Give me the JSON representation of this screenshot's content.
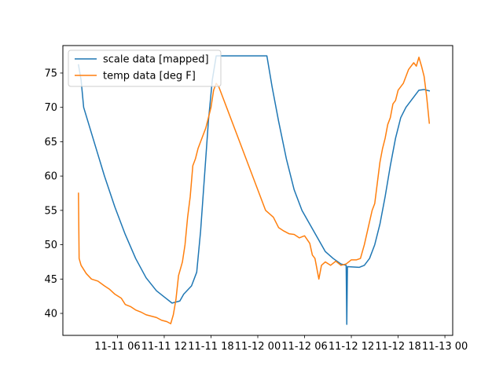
{
  "chart_data": {
    "type": "line",
    "title": "",
    "xlabel": "",
    "ylabel": "",
    "x_axis": "datetime",
    "xlim": [
      "2020-11-10 23:00",
      "2020-11-13 01:00"
    ],
    "ylim": [
      36.8,
      79.0
    ],
    "x_ticks": [
      {
        "x": "2020-11-11 06:00",
        "label": "11-11 06"
      },
      {
        "x": "2020-11-11 12:00",
        "label": "11-11 12"
      },
      {
        "x": "2020-11-11 18:00",
        "label": "11-11 18"
      },
      {
        "x": "2020-11-12 00:00",
        "label": "11-12 00"
      },
      {
        "x": "2020-11-12 06:00",
        "label": "11-12 06"
      },
      {
        "x": "2020-11-12 12:00",
        "label": "11-12 12"
      },
      {
        "x": "2020-11-12 18:00",
        "label": "11-12 18"
      },
      {
        "x": "2020-11-13 00:00",
        "label": "11-13 00"
      }
    ],
    "y_ticks": [
      40,
      45,
      50,
      55,
      60,
      65,
      70,
      75
    ],
    "grid": false,
    "legend": {
      "position": "top-left"
    },
    "series": [
      {
        "name": "scale data [mapped]",
        "color": "#1f77b4",
        "points": [
          [
            "2020-11-11 01:00",
            76.2
          ],
          [
            "2020-11-11 01:20",
            74.0
          ],
          [
            "2020-11-11 01:40",
            70.0
          ],
          [
            "2020-11-11 03:00",
            65.0
          ],
          [
            "2020-11-11 04:20",
            60.0
          ],
          [
            "2020-11-11 05:40",
            55.5
          ],
          [
            "2020-11-11 07:00",
            51.5
          ],
          [
            "2020-11-11 08:20",
            48.0
          ],
          [
            "2020-11-11 09:40",
            45.2
          ],
          [
            "2020-11-11 11:00",
            43.3
          ],
          [
            "2020-11-11 12:00",
            42.4
          ],
          [
            "2020-11-11 13:00",
            41.5
          ],
          [
            "2020-11-11 14:00",
            41.8
          ],
          [
            "2020-11-11 14:30",
            42.8
          ],
          [
            "2020-11-11 15:30",
            44.0
          ],
          [
            "2020-11-11 16:10",
            46.0
          ],
          [
            "2020-11-11 16:40",
            52.0
          ],
          [
            "2020-11-11 17:10",
            60.0
          ],
          [
            "2020-11-11 17:40",
            68.0
          ],
          [
            "2020-11-11 18:10",
            74.0
          ],
          [
            "2020-11-11 18:40",
            77.5
          ],
          [
            "2020-11-12 01:10",
            77.5
          ],
          [
            "2020-11-12 01:50",
            73.0
          ],
          [
            "2020-11-12 02:40",
            68.0
          ],
          [
            "2020-11-12 03:40",
            62.5
          ],
          [
            "2020-11-12 04:40",
            58.0
          ],
          [
            "2020-11-12 05:40",
            55.0
          ],
          [
            "2020-11-12 06:40",
            53.0
          ],
          [
            "2020-11-12 07:40",
            51.0
          ],
          [
            "2020-11-12 08:40",
            49.0
          ],
          [
            "2020-11-12 09:40",
            48.0
          ],
          [
            "2020-11-12 10:40",
            47.2
          ],
          [
            "2020-11-12 11:20",
            47.0
          ],
          [
            "2020-11-12 11:25",
            38.4
          ],
          [
            "2020-11-12 11:30",
            46.8
          ],
          [
            "2020-11-12 13:00",
            46.7
          ],
          [
            "2020-11-12 13:40",
            47.0
          ],
          [
            "2020-11-12 14:20",
            48.0
          ],
          [
            "2020-11-12 15:00",
            50.0
          ],
          [
            "2020-11-12 15:40",
            53.0
          ],
          [
            "2020-11-12 16:20",
            57.0
          ],
          [
            "2020-11-12 17:00",
            61.5
          ],
          [
            "2020-11-12 17:40",
            65.5
          ],
          [
            "2020-11-12 18:20",
            68.5
          ],
          [
            "2020-11-12 19:00",
            70.0
          ],
          [
            "2020-11-12 19:40",
            71.0
          ],
          [
            "2020-11-12 20:40",
            72.5
          ],
          [
            "2020-11-12 21:20",
            72.6
          ],
          [
            "2020-11-12 21:40",
            72.5
          ],
          [
            "2020-11-12 22:00",
            72.4
          ]
        ]
      },
      {
        "name": "temp data [deg F]",
        "color": "#ff7f0e",
        "points": [
          [
            "2020-11-11 01:00",
            57.5
          ],
          [
            "2020-11-11 01:05",
            48.0
          ],
          [
            "2020-11-11 01:20",
            47.0
          ],
          [
            "2020-11-11 02:00",
            45.8
          ],
          [
            "2020-11-11 02:40",
            45.0
          ],
          [
            "2020-11-11 03:30",
            44.7
          ],
          [
            "2020-11-11 04:20",
            44.0
          ],
          [
            "2020-11-11 05:00",
            43.5
          ],
          [
            "2020-11-11 05:40",
            42.8
          ],
          [
            "2020-11-11 06:30",
            42.2
          ],
          [
            "2020-11-11 07:00",
            41.3
          ],
          [
            "2020-11-11 07:40",
            41.0
          ],
          [
            "2020-11-11 08:20",
            40.5
          ],
          [
            "2020-11-11 09:00",
            40.2
          ],
          [
            "2020-11-11 09:40",
            39.8
          ],
          [
            "2020-11-11 10:20",
            39.6
          ],
          [
            "2020-11-11 11:00",
            39.4
          ],
          [
            "2020-11-11 11:40",
            39.0
          ],
          [
            "2020-11-11 12:20",
            38.8
          ],
          [
            "2020-11-11 12:50",
            38.5
          ],
          [
            "2020-11-11 13:10",
            39.8
          ],
          [
            "2020-11-11 13:30",
            42.0
          ],
          [
            "2020-11-11 13:50",
            45.5
          ],
          [
            "2020-11-11 14:20",
            47.5
          ],
          [
            "2020-11-11 14:40",
            50.0
          ],
          [
            "2020-11-11 15:00",
            54.0
          ],
          [
            "2020-11-11 15:20",
            57.0
          ],
          [
            "2020-11-11 15:40",
            61.5
          ],
          [
            "2020-11-11 16:00",
            62.5
          ],
          [
            "2020-11-11 16:20",
            64.0
          ],
          [
            "2020-11-11 16:40",
            65.0
          ],
          [
            "2020-11-11 17:00",
            66.0
          ],
          [
            "2020-11-11 17:20",
            67.0
          ],
          [
            "2020-11-11 17:40",
            68.5
          ],
          [
            "2020-11-11 18:00",
            70.0
          ],
          [
            "2020-11-11 18:20",
            72.5
          ],
          [
            "2020-11-11 18:40",
            73.5
          ],
          [
            "2020-11-11 19:00",
            73.0
          ],
          [
            "2020-11-11 20:00",
            70.0
          ],
          [
            "2020-11-11 21:20",
            66.0
          ],
          [
            "2020-11-11 22:40",
            62.0
          ],
          [
            "2020-11-12 00:00",
            58.0
          ],
          [
            "2020-11-12 01:00",
            55.0
          ],
          [
            "2020-11-12 02:00",
            54.0
          ],
          [
            "2020-11-12 02:40",
            52.5
          ],
          [
            "2020-11-12 03:20",
            52.0
          ],
          [
            "2020-11-12 04:00",
            51.6
          ],
          [
            "2020-11-12 04:40",
            51.5
          ],
          [
            "2020-11-12 05:20",
            51.0
          ],
          [
            "2020-11-12 06:00",
            51.3
          ],
          [
            "2020-11-12 06:40",
            50.2
          ],
          [
            "2020-11-12 07:00",
            48.5
          ],
          [
            "2020-11-12 07:20",
            48.0
          ],
          [
            "2020-11-12 07:40",
            46.0
          ],
          [
            "2020-11-12 07:50",
            45.0
          ],
          [
            "2020-11-12 08:10",
            47.0
          ],
          [
            "2020-11-12 08:40",
            47.5
          ],
          [
            "2020-11-12 09:20",
            47.0
          ],
          [
            "2020-11-12 10:00",
            47.6
          ],
          [
            "2020-11-12 10:40",
            47.0
          ],
          [
            "2020-11-12 11:20",
            47.2
          ],
          [
            "2020-11-12 12:00",
            47.8
          ],
          [
            "2020-11-12 12:40",
            47.8
          ],
          [
            "2020-11-12 13:10",
            48.0
          ],
          [
            "2020-11-12 13:40",
            50.0
          ],
          [
            "2020-11-12 14:10",
            52.5
          ],
          [
            "2020-11-12 14:40",
            55.0
          ],
          [
            "2020-11-12 15:00",
            56.0
          ],
          [
            "2020-11-12 15:20",
            59.0
          ],
          [
            "2020-11-12 15:40",
            62.0
          ],
          [
            "2020-11-12 16:00",
            64.0
          ],
          [
            "2020-11-12 16:20",
            65.5
          ],
          [
            "2020-11-12 16:40",
            67.5
          ],
          [
            "2020-11-12 17:00",
            68.5
          ],
          [
            "2020-11-12 17:20",
            70.5
          ],
          [
            "2020-11-12 17:40",
            71.0
          ],
          [
            "2020-11-12 18:00",
            72.5
          ],
          [
            "2020-11-12 18:20",
            73.0
          ],
          [
            "2020-11-12 18:40",
            73.5
          ],
          [
            "2020-11-12 19:00",
            74.5
          ],
          [
            "2020-11-12 19:20",
            75.5
          ],
          [
            "2020-11-12 19:40",
            76.0
          ],
          [
            "2020-11-12 20:00",
            76.5
          ],
          [
            "2020-11-12 20:20",
            76.0
          ],
          [
            "2020-11-12 20:40",
            77.3
          ],
          [
            "2020-11-12 21:00",
            76.0
          ],
          [
            "2020-11-12 21:20",
            74.5
          ],
          [
            "2020-11-12 21:40",
            71.5
          ],
          [
            "2020-11-12 22:00",
            67.7
          ]
        ]
      }
    ]
  }
}
